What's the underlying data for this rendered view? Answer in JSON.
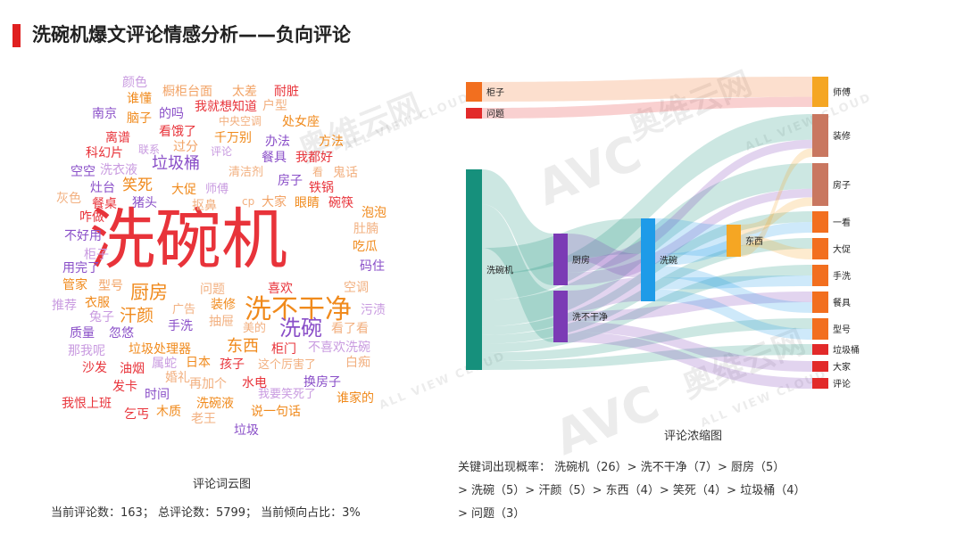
{
  "page_title": "洗碗机爆文评论情感分析——负向评论",
  "wordcloud": {
    "caption": "评论词云图",
    "stats": "当前评论数：163；  总评论数：5799；  当前倾向占比：3%",
    "words": [
      {
        "t": "洗碗机",
        "c": "#e8333a"
      },
      {
        "t": "洗不干净",
        "c": "#f08a1c"
      },
      {
        "t": "洗碗",
        "c": "#8a4fc8"
      },
      {
        "t": "厨房",
        "c": "#f08a1c"
      },
      {
        "t": "汗颜",
        "c": "#f08a1c"
      },
      {
        "t": "垃圾桶",
        "c": "#8a4fc8"
      },
      {
        "t": "东西",
        "c": "#f08a1c"
      },
      {
        "t": "笑死",
        "c": "#f08a1c"
      },
      {
        "t": "颜色",
        "c": "#c99be0"
      },
      {
        "t": "橱柜台面",
        "c": "#f2a366"
      },
      {
        "t": "太差",
        "c": "#f2a366"
      },
      {
        "t": "耐脏",
        "c": "#e8333a"
      },
      {
        "t": "谁懂",
        "c": "#f08a1c"
      },
      {
        "t": "我就想知道",
        "c": "#e8333a"
      },
      {
        "t": "户型",
        "c": "#f2b080"
      },
      {
        "t": "南京",
        "c": "#8a4fc8"
      },
      {
        "t": "脑子",
        "c": "#f08a1c"
      },
      {
        "t": "的吗",
        "c": "#8a4fc8"
      },
      {
        "t": "中央空调",
        "c": "#f2b080"
      },
      {
        "t": "处女座",
        "c": "#f08a1c"
      },
      {
        "t": "看饿了",
        "c": "#e8333a"
      },
      {
        "t": "离谱",
        "c": "#e8333a"
      },
      {
        "t": "千万别",
        "c": "#f08a1c"
      },
      {
        "t": "办法",
        "c": "#8a4fc8"
      },
      {
        "t": "方法",
        "c": "#f08a1c"
      },
      {
        "t": "科幻片",
        "c": "#e8333a"
      },
      {
        "t": "联系",
        "c": "#c99be0"
      },
      {
        "t": "过分",
        "c": "#f2a366"
      },
      {
        "t": "评论",
        "c": "#c99be0"
      },
      {
        "t": "餐具",
        "c": "#8a4fc8"
      },
      {
        "t": "我都好",
        "c": "#e8333a"
      },
      {
        "t": "空空",
        "c": "#8a4fc8"
      },
      {
        "t": "洗衣液",
        "c": "#c99be0"
      },
      {
        "t": "清洁剂",
        "c": "#f2b080"
      },
      {
        "t": "看",
        "c": "#f2b080"
      },
      {
        "t": "鬼话",
        "c": "#f2b080"
      },
      {
        "t": "灶台",
        "c": "#8a4fc8"
      },
      {
        "t": "大促",
        "c": "#f08a1c"
      },
      {
        "t": "师傅",
        "c": "#c99be0"
      },
      {
        "t": "房子",
        "c": "#8a4fc8"
      },
      {
        "t": "铁锅",
        "c": "#e8333a"
      },
      {
        "t": "灰色",
        "c": "#f2b080"
      },
      {
        "t": "餐桌",
        "c": "#e8333a"
      },
      {
        "t": "猪头",
        "c": "#8a4fc8"
      },
      {
        "t": "cp",
        "c": "#f2b080"
      },
      {
        "t": "大家",
        "c": "#f2a366"
      },
      {
        "t": "眼睛",
        "c": "#f08a1c"
      },
      {
        "t": "碗筷",
        "c": "#e8333a"
      },
      {
        "t": "咋做",
        "c": "#e8333a"
      },
      {
        "t": "抠鼻",
        "c": "#f2b080"
      },
      {
        "t": "泡泡",
        "c": "#f08a1c"
      },
      {
        "t": "不好用",
        "c": "#8a4fc8"
      },
      {
        "t": "肚腩",
        "c": "#f2b080"
      },
      {
        "t": "柜子",
        "c": "#c99be0"
      },
      {
        "t": "吃瓜",
        "c": "#f08a1c"
      },
      {
        "t": "用完了",
        "c": "#8a4fc8"
      },
      {
        "t": "码住",
        "c": "#8a4fc8"
      },
      {
        "t": "管家",
        "c": "#f08a1c"
      },
      {
        "t": "型号",
        "c": "#f2a366"
      },
      {
        "t": "问题",
        "c": "#f2b080"
      },
      {
        "t": "喜欢",
        "c": "#e8333a"
      },
      {
        "t": "空调",
        "c": "#f2b080"
      },
      {
        "t": "推荐",
        "c": "#c99be0"
      },
      {
        "t": "衣服",
        "c": "#f08a1c"
      },
      {
        "t": "广告",
        "c": "#f2b080"
      },
      {
        "t": "装修",
        "c": "#f08a1c"
      },
      {
        "t": "污渍",
        "c": "#c99be0"
      },
      {
        "t": "兔子",
        "c": "#c99be0"
      },
      {
        "t": "手洗",
        "c": "#8a4fc8"
      },
      {
        "t": "抽屉",
        "c": "#f2b080"
      },
      {
        "t": "美的",
        "c": "#f2b080"
      },
      {
        "t": "看了看",
        "c": "#f2b080"
      },
      {
        "t": "质量",
        "c": "#8a4fc8"
      },
      {
        "t": "忽悠",
        "c": "#8a4fc8"
      },
      {
        "t": "垃圾处理器",
        "c": "#f08a1c"
      },
      {
        "t": "柜门",
        "c": "#e8333a"
      },
      {
        "t": "不喜欢洗碗",
        "c": "#c99be0"
      },
      {
        "t": "那我呢",
        "c": "#c99be0"
      },
      {
        "t": "属蛇",
        "c": "#c99be0"
      },
      {
        "t": "日本",
        "c": "#f08a1c"
      },
      {
        "t": "孩子",
        "c": "#e8333a"
      },
      {
        "t": "这个厉害了",
        "c": "#f2b080"
      },
      {
        "t": "白痴",
        "c": "#f2b080"
      },
      {
        "t": "沙发",
        "c": "#e8333a"
      },
      {
        "t": "油烟",
        "c": "#e8333a"
      },
      {
        "t": "婚礼",
        "c": "#f2b080"
      },
      {
        "t": "再加个",
        "c": "#f2b080"
      },
      {
        "t": "水电",
        "c": "#e8333a"
      },
      {
        "t": "换房子",
        "c": "#8a4fc8"
      },
      {
        "t": "发卡",
        "c": "#e8333a"
      },
      {
        "t": "时间",
        "c": "#8a4fc8"
      },
      {
        "t": "我要笑死了",
        "c": "#c99be0"
      },
      {
        "t": "谁家的",
        "c": "#f08a1c"
      },
      {
        "t": "我恨上班",
        "c": "#e8333a"
      },
      {
        "t": "洗碗液",
        "c": "#f08a1c"
      },
      {
        "t": "说一句话",
        "c": "#f08a1c"
      },
      {
        "t": "乞丐",
        "c": "#e8333a"
      },
      {
        "t": "木质",
        "c": "#f08a1c"
      },
      {
        "t": "老王",
        "c": "#f2b080"
      },
      {
        "t": "垃圾",
        "c": "#8a4fc8"
      }
    ]
  },
  "chart_data": {
    "type": "sankey",
    "caption": "评论浓缩图",
    "nodes": [
      {
        "name": "柜子",
        "color": "#f26f1f"
      },
      {
        "name": "问题",
        "color": "#e22a2a"
      },
      {
        "name": "洗碗机",
        "color": "#16907c"
      },
      {
        "name": "厨房",
        "color": "#7b3bb5"
      },
      {
        "name": "洗不干净",
        "color": "#7b3bb5"
      },
      {
        "name": "洗碗",
        "color": "#1e9be8"
      },
      {
        "name": "东西",
        "color": "#f5a623"
      },
      {
        "name": "师傅",
        "color": "#f5a623"
      },
      {
        "name": "装修",
        "color": "#c97760"
      },
      {
        "name": "房子",
        "color": "#c97760"
      },
      {
        "name": "一看",
        "color": "#f26f1f"
      },
      {
        "name": "大促",
        "color": "#f26f1f"
      },
      {
        "name": "手洗",
        "color": "#f26f1f"
      },
      {
        "name": "餐具",
        "color": "#f26f1f"
      },
      {
        "name": "型号",
        "color": "#f26f1f"
      },
      {
        "name": "垃圾桶",
        "color": "#e22a2a"
      },
      {
        "name": "大家",
        "color": "#e22a2a"
      },
      {
        "name": "评论",
        "color": "#e22a2a"
      }
    ],
    "links": [
      {
        "source": "柜子",
        "target": "师傅",
        "value": 2
      },
      {
        "source": "问题",
        "target": "师傅",
        "value": 1
      },
      {
        "source": "洗碗机",
        "target": "厨房",
        "value": 4
      },
      {
        "source": "洗碗机",
        "target": "洗不干净",
        "value": 5
      },
      {
        "source": "洗碗机",
        "target": "洗碗",
        "value": 3
      },
      {
        "source": "洗碗机",
        "target": "装修",
        "value": 3
      },
      {
        "source": "洗碗机",
        "target": "房子",
        "value": 3
      },
      {
        "source": "洗碗机",
        "target": "一看",
        "value": 1
      },
      {
        "source": "洗碗机",
        "target": "大促",
        "value": 1
      },
      {
        "source": "洗碗机",
        "target": "手洗",
        "value": 1
      },
      {
        "source": "洗碗机",
        "target": "型号",
        "value": 1
      },
      {
        "source": "洗碗机",
        "target": "垃圾桶",
        "value": 1
      },
      {
        "source": "厨房",
        "target": "洗碗",
        "value": 2
      },
      {
        "source": "厨房",
        "target": "装修",
        "value": 1
      },
      {
        "source": "厨房",
        "target": "房子",
        "value": 1
      },
      {
        "source": "洗不干净",
        "target": "洗碗",
        "value": 2
      },
      {
        "source": "洗不干净",
        "target": "餐具",
        "value": 1
      },
      {
        "source": "洗不干净",
        "target": "大家",
        "value": 1
      },
      {
        "source": "洗不干净",
        "target": "评论",
        "value": 1
      },
      {
        "source": "洗碗",
        "target": "东西",
        "value": 3
      },
      {
        "source": "洗碗",
        "target": "一看",
        "value": 1
      },
      {
        "source": "洗碗",
        "target": "餐具",
        "value": 1
      },
      {
        "source": "洗碗",
        "target": "手洗",
        "value": 1
      },
      {
        "source": "洗碗",
        "target": "型号",
        "value": 1
      },
      {
        "source": "东西",
        "target": "房子",
        "value": 1
      },
      {
        "source": "东西",
        "target": "大促",
        "value": 1
      },
      {
        "source": "东西",
        "target": "装修",
        "value": 1
      }
    ]
  },
  "probability": {
    "line1": "关键词出现概率：  洗碗机（26）> 洗不干净（7）> 厨房（5）",
    "line2": "> 洗碗（5）> 汗颜（5）> 东西（4）> 笑死（4）> 垃圾桶（4）",
    "line3": "> 问题（3）"
  },
  "watermarks": {
    "brand": "AVC",
    "cn": "奥维云网",
    "en": "ALL VIEW CLOUD"
  }
}
